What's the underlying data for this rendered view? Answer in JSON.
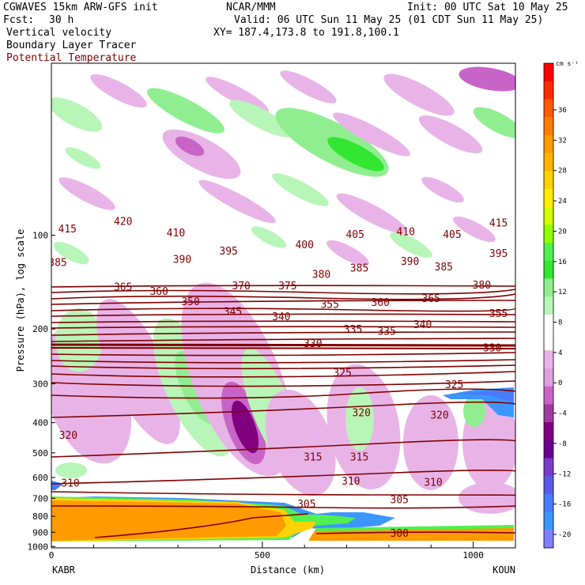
{
  "header": {
    "line1_left": "CGWAVES 15km ARW-GFS init",
    "line1_center": "NCAR/MMM",
    "line1_right": "Init: 00 UTC Sat 10 May 25",
    "fcst_label": "Fcst:",
    "fcst_value": "30 h",
    "valid": "Valid: 06 UTC Sun 11 May 25 (01 CDT Sun 11 May 25)",
    "xy": "XY= 187.4,173.8 to 191.8,100.1",
    "field1": "Vertical velocity",
    "field2": "Boundary Layer Tracer",
    "field3": "Potential Temperature"
  },
  "colors": {
    "theta": "#800000",
    "field3_text": "#800000"
  },
  "chart_data": {
    "type": "cross-section",
    "ylabel": "Pressure (hPa), log scale",
    "xlabel": "Distance (km)",
    "y_scale": "log",
    "y_ticks": [
      100,
      200,
      300,
      400,
      500,
      600,
      700,
      800,
      900,
      1000
    ],
    "x_ticks": [
      0,
      500,
      1000
    ],
    "x_range": [
      0,
      1100
    ],
    "left_endpoint": "KABR",
    "right_endpoint": "KOUN",
    "colorbar": {
      "unit": "cm s⁻¹",
      "labels": [
        36,
        32,
        28,
        24,
        20,
        16,
        12,
        8,
        4,
        0,
        -4,
        -8,
        -12,
        -16,
        -20
      ],
      "colors": [
        "#ff0000",
        "#ff2a00",
        "#ff5a00",
        "#ff7a00",
        "#ff9a00",
        "#ffb400",
        "#ffd200",
        "#ffee00",
        "#d2ff00",
        "#90ff00",
        "#50f050",
        "#32e632",
        "#90ee90",
        "#b8f5b8",
        "#ffffff",
        "#ffffff",
        "#e8b4e8",
        "#e0a0e0",
        "#c864c8",
        "#a03ca0",
        "#800080",
        "#6a0090",
        "#7a3cc8",
        "#5a5ae6",
        "#4a7aff",
        "#3c96ff",
        "#8080ff"
      ]
    },
    "theta_labels": [
      {
        "t": "415",
        "x": 38,
        "p": 95
      },
      {
        "t": "420",
        "x": 170,
        "p": 90
      },
      {
        "t": "410",
        "x": 295,
        "p": 98
      },
      {
        "t": "405",
        "x": 720,
        "p": 99
      },
      {
        "t": "410",
        "x": 840,
        "p": 97
      },
      {
        "t": "405",
        "x": 950,
        "p": 99
      },
      {
        "t": "415",
        "x": 1060,
        "p": 91
      },
      {
        "t": "385",
        "x": 15,
        "p": 122
      },
      {
        "t": "390",
        "x": 310,
        "p": 119
      },
      {
        "t": "395",
        "x": 420,
        "p": 112
      },
      {
        "t": "400",
        "x": 600,
        "p": 107
      },
      {
        "t": "390",
        "x": 850,
        "p": 121
      },
      {
        "t": "385",
        "x": 930,
        "p": 126
      },
      {
        "t": "395",
        "x": 1060,
        "p": 114
      },
      {
        "t": "365",
        "x": 170,
        "p": 146
      },
      {
        "t": "360",
        "x": 255,
        "p": 151
      },
      {
        "t": "370",
        "x": 450,
        "p": 145
      },
      {
        "t": "375",
        "x": 560,
        "p": 145
      },
      {
        "t": "380",
        "x": 640,
        "p": 133
      },
      {
        "t": "385",
        "x": 730,
        "p": 127
      },
      {
        "t": "365",
        "x": 900,
        "p": 159
      },
      {
        "t": "380",
        "x": 1020,
        "p": 144
      },
      {
        "t": "350",
        "x": 330,
        "p": 163
      },
      {
        "t": "345",
        "x": 430,
        "p": 175
      },
      {
        "t": "340",
        "x": 545,
        "p": 182
      },
      {
        "t": "355",
        "x": 660,
        "p": 166
      },
      {
        "t": "360",
        "x": 780,
        "p": 164
      },
      {
        "t": "355",
        "x": 1060,
        "p": 178
      },
      {
        "t": "330",
        "x": 620,
        "p": 222
      },
      {
        "t": "335",
        "x": 715,
        "p": 200
      },
      {
        "t": "335",
        "x": 795,
        "p": 203
      },
      {
        "t": "340",
        "x": 880,
        "p": 193
      },
      {
        "t": "330",
        "x": 1045,
        "p": 229
      },
      {
        "t": "325",
        "x": 690,
        "p": 276
      },
      {
        "t": "325",
        "x": 955,
        "p": 301
      },
      {
        "t": "320",
        "x": 40,
        "p": 438
      },
      {
        "t": "320",
        "x": 735,
        "p": 370
      },
      {
        "t": "320",
        "x": 920,
        "p": 377
      },
      {
        "t": "315",
        "x": 620,
        "p": 514
      },
      {
        "t": "315",
        "x": 730,
        "p": 514
      },
      {
        "t": "310",
        "x": 45,
        "p": 624
      },
      {
        "t": "310",
        "x": 710,
        "p": 615
      },
      {
        "t": "310",
        "x": 905,
        "p": 620
      },
      {
        "t": "305",
        "x": 605,
        "p": 727
      },
      {
        "t": "305",
        "x": 825,
        "p": 704
      },
      {
        "t": "300",
        "x": 825,
        "p": 903
      }
    ]
  }
}
